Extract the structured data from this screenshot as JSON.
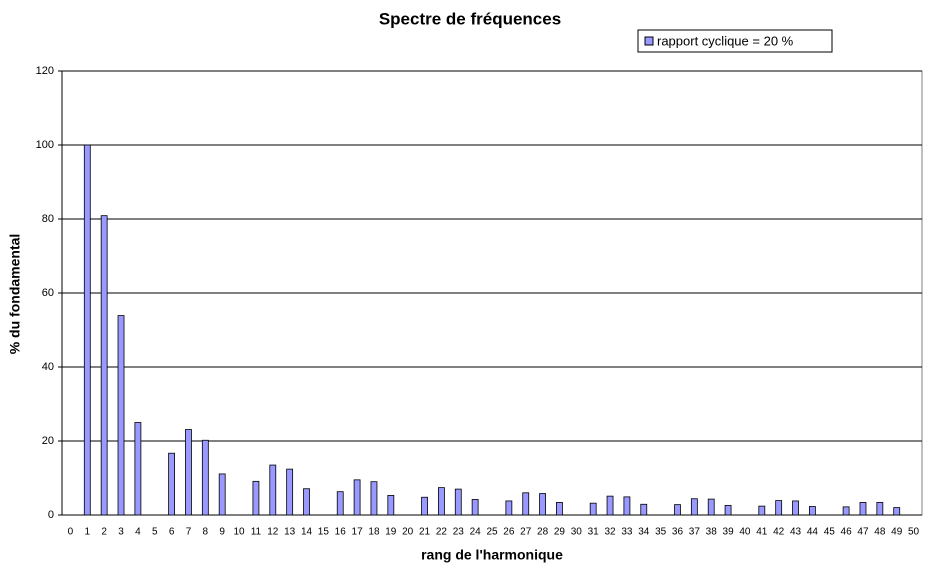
{
  "chart_data": {
    "type": "bar",
    "title": "Spectre de fréquences",
    "x_label": "rang de l'harmonique",
    "y_label": "% du fondamental",
    "categories": [
      "0",
      "1",
      "2",
      "3",
      "4",
      "5",
      "6",
      "7",
      "8",
      "9",
      "10",
      "11",
      "12",
      "13",
      "14",
      "15",
      "16",
      "17",
      "18",
      "19",
      "20",
      "21",
      "22",
      "23",
      "24",
      "25",
      "26",
      "27",
      "28",
      "29",
      "30",
      "31",
      "32",
      "33",
      "34",
      "35",
      "36",
      "37",
      "38",
      "39",
      "40",
      "41",
      "42",
      "43",
      "44",
      "45",
      "46",
      "47",
      "48",
      "49",
      "50"
    ],
    "series": [
      {
        "name": "rapport cyclique =  20 %",
        "color": "#9999ff",
        "values": [
          0,
          100,
          80.9,
          53.9,
          25,
          0,
          16.7,
          23.1,
          20.2,
          11.1,
          0,
          9.1,
          13.5,
          12.4,
          7.1,
          0,
          6.3,
          9.5,
          9.0,
          5.3,
          0,
          4.8,
          7.4,
          7.0,
          4.2,
          0,
          3.8,
          6.0,
          5.8,
          3.4,
          0,
          3.2,
          5.1,
          4.9,
          2.9,
          0,
          2.8,
          4.4,
          4.3,
          2.6,
          0,
          2.4,
          3.9,
          3.8,
          2.3,
          0,
          2.2,
          3.4,
          3.4,
          2.0,
          0
        ]
      }
    ],
    "ylim": [
      0,
      120
    ],
    "yticks": [
      0,
      20,
      40,
      60,
      80,
      100,
      120
    ],
    "grid": true,
    "legend": "top-right"
  }
}
